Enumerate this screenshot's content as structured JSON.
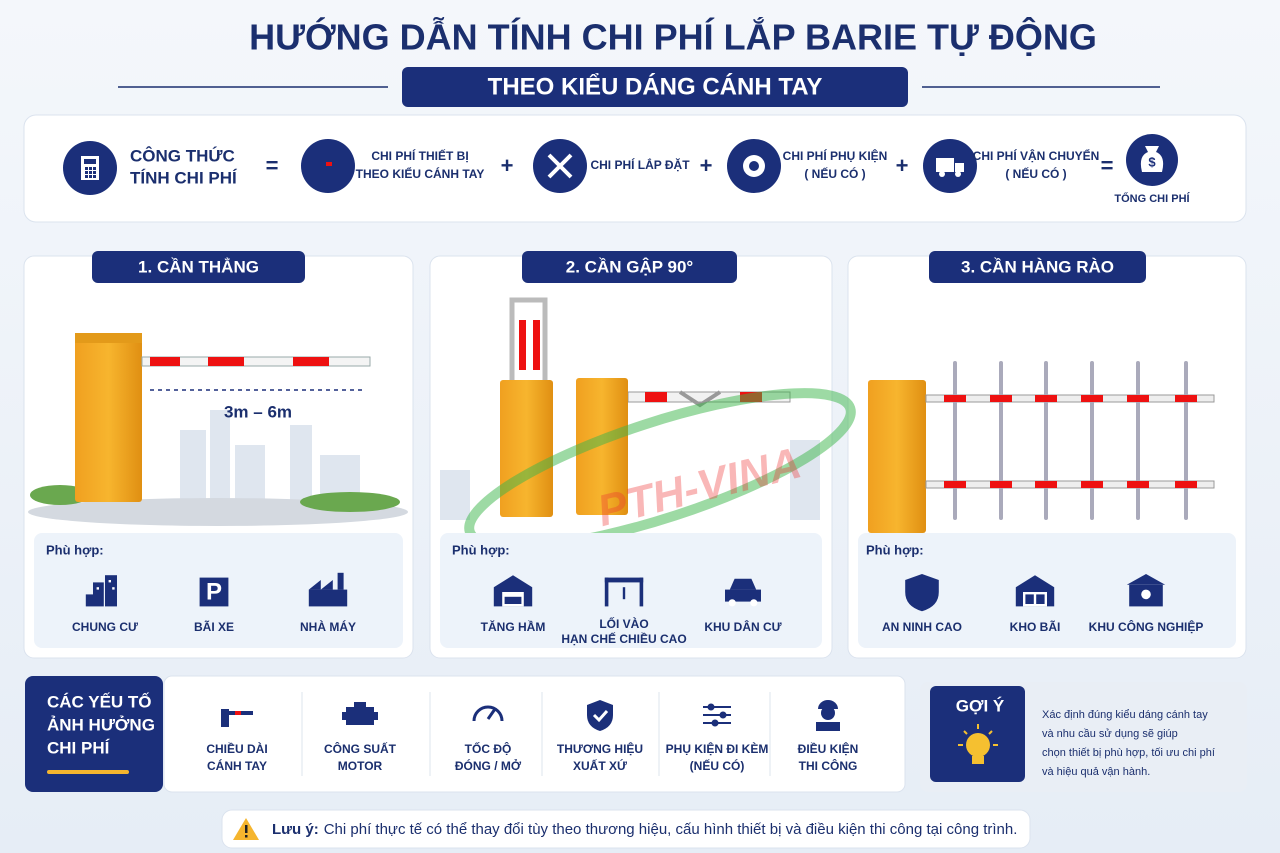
{
  "header": {
    "title": "HƯỚNG DẪN TÍNH CHI PHÍ LẮP BARIE TỰ ĐỘNG",
    "subtitle": "THEO KIỂU DÁNG CÁNH TAY"
  },
  "formula": {
    "label_lines": [
      "CÔNG THỨC",
      "TÍNH CHI PHÍ"
    ],
    "operators": [
      "=",
      "+",
      "+",
      "+",
      "="
    ],
    "terms": [
      {
        "lines": [
          "CHI PHÍ THIẾT BỊ",
          "THEO KIỂU CÁNH TAY"
        ]
      },
      {
        "lines": [
          "CHI PHÍ LẮP ĐẶT"
        ]
      },
      {
        "lines": [
          "CHI PHÍ PHỤ KIỆN",
          "( NẾU CÓ )"
        ]
      },
      {
        "lines": [
          "CHI PHÍ VẬN CHUYỂN",
          "( NẾU CÓ )"
        ]
      }
    ],
    "result": "TỔNG CHI PHÍ"
  },
  "types": [
    {
      "title": "1. CẦN THẲNG",
      "measure": "3m – 6m",
      "suitable_label": "Phù hợp:",
      "uses": [
        {
          "lines": [
            "CHUNG CƯ"
          ]
        },
        {
          "lines": [
            "BÃI XE"
          ]
        },
        {
          "lines": [
            "NHÀ MÁY"
          ]
        }
      ]
    },
    {
      "title": "2. CẦN GẬP 90°",
      "suitable_label": "Phù hợp:",
      "uses": [
        {
          "lines": [
            "TĂNG HẦM"
          ]
        },
        {
          "lines": [
            "LỐI VÀO",
            "HẠN CHẾ CHIỀU CAO"
          ]
        },
        {
          "lines": [
            "KHU DÂN CƯ"
          ]
        }
      ]
    },
    {
      "title": "3. CẦN HÀNG RÀO",
      "suitable_label": "Phù hợp:",
      "uses": [
        {
          "lines": [
            "AN NINH CAO"
          ]
        },
        {
          "lines": [
            "KHO BÃI"
          ]
        },
        {
          "lines": [
            "KHU CÔNG NGHIỆP"
          ]
        }
      ]
    }
  ],
  "watermark": "PTH-VINA",
  "factors": {
    "heading_lines": [
      "CÁC YẾU TỐ",
      "ẢNH HƯỞNG",
      "CHI PHÍ"
    ],
    "items": [
      {
        "lines": [
          "CHIỀU DÀI",
          "CÁNH TAY"
        ]
      },
      {
        "lines": [
          "CÔNG SUẤT",
          "MOTOR"
        ]
      },
      {
        "lines": [
          "TỐC ĐỘ",
          "ĐÓNG / MỞ"
        ]
      },
      {
        "lines": [
          "THƯƠNG HIỆU",
          "XUẤT XỨ"
        ]
      },
      {
        "lines": [
          "PHỤ KIỆN ĐI KÈM",
          "(NẾU CÓ)"
        ]
      },
      {
        "lines": [
          "ĐIỀU KIỆN",
          "THI CÔNG"
        ]
      }
    ]
  },
  "tip": {
    "title": "GỢI Ý",
    "lines": [
      "Xác định đúng kiểu dáng cánh tay",
      "và nhu cầu sử dụng sẽ giúp",
      "chọn thiết bị phù hợp, tối ưu chi phí",
      "và hiệu quả vận hành."
    ]
  },
  "note": {
    "label": "Lưu ý:",
    "text": "Chi phí thực tế có thể thay đổi tùy theo thương hiệu, cấu hình thiết bị và điều kiện thi công tại công trình."
  }
}
